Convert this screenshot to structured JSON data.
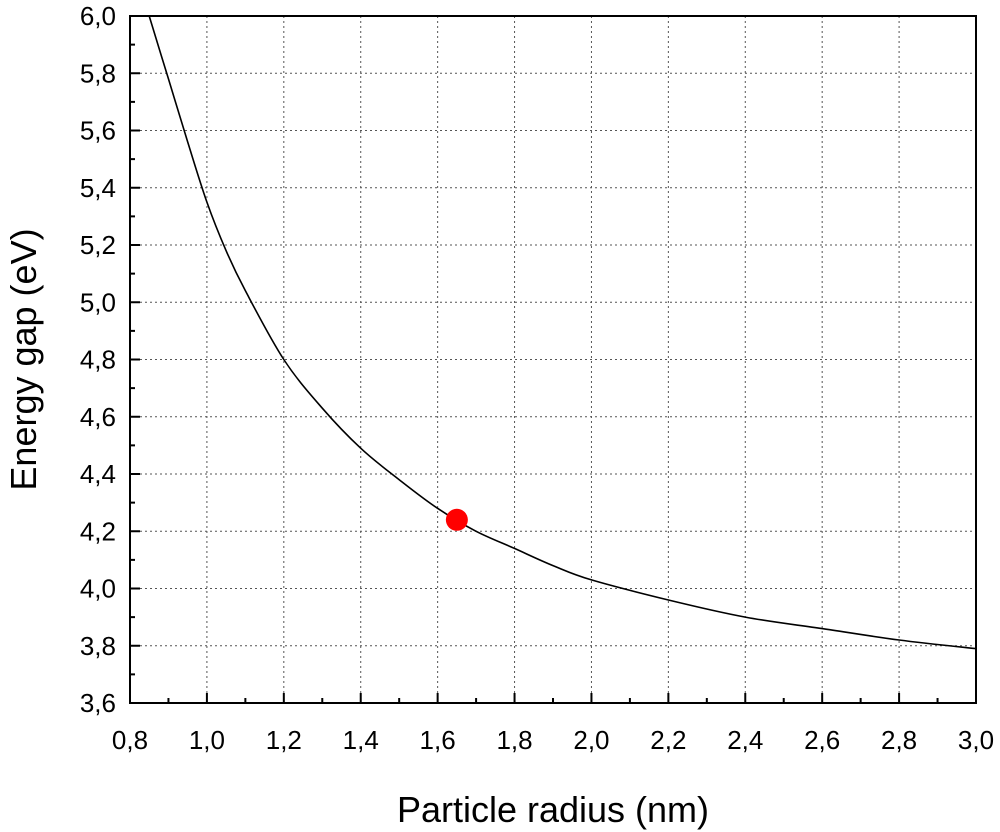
{
  "chart_data": {
    "type": "line",
    "title": "",
    "xlabel": "Particle radius (nm)",
    "ylabel": "Energy gap (eV)",
    "xlim": [
      0.8,
      3.0
    ],
    "ylim": [
      3.6,
      6.0
    ],
    "x_ticks": [
      "0,8",
      "1,0",
      "1,2",
      "1,4",
      "1,6",
      "1,8",
      "2,0",
      "2,2",
      "2,4",
      "2,6",
      "2,8",
      "3,0"
    ],
    "y_ticks": [
      "3,6",
      "3,8",
      "4,0",
      "4,2",
      "4,4",
      "4,6",
      "4,8",
      "5,0",
      "5,2",
      "5,4",
      "5,6",
      "5,8",
      "6,0"
    ],
    "grid": true,
    "series": [
      {
        "type": "line",
        "color": "#000000",
        "x": [
          0.85,
          0.9,
          0.95,
          1.0,
          1.05,
          1.1,
          1.2,
          1.3,
          1.4,
          1.5,
          1.6,
          1.7,
          1.8,
          1.9,
          2.0,
          2.2,
          2.4,
          2.6,
          2.8,
          3.0
        ],
        "y": [
          6.0,
          5.78,
          5.56,
          5.35,
          5.18,
          5.04,
          4.8,
          4.63,
          4.49,
          4.38,
          4.28,
          4.2,
          4.14,
          4.08,
          4.03,
          3.96,
          3.9,
          3.86,
          3.82,
          3.79
        ]
      },
      {
        "type": "scatter",
        "color": "#ff0000",
        "x": [
          1.65
        ],
        "y": [
          4.24
        ]
      }
    ]
  }
}
